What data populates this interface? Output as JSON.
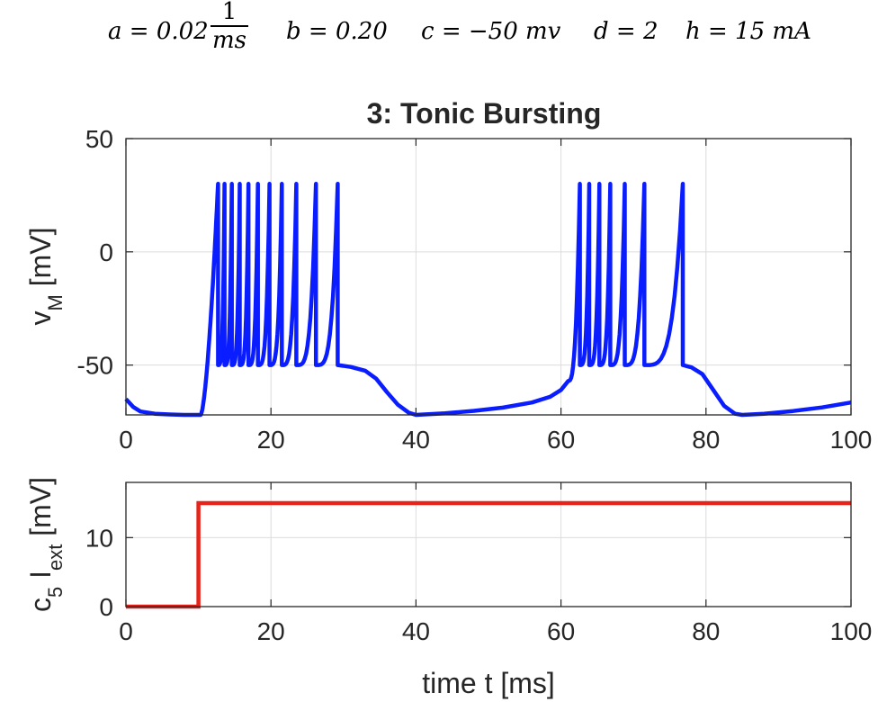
{
  "equation": {
    "a_lhs": "a = 0.02",
    "a_num": "1",
    "a_den": "ms",
    "b": "b = 0.20",
    "c": "c = −50 mv",
    "d": "d = 2",
    "h": "h = 15 mA"
  },
  "chart_data": [
    {
      "type": "line",
      "title": "3: Tonic Bursting",
      "xlabel": "",
      "ylabel": "v_M [mV]",
      "ylabel_main": "v",
      "ylabel_sub": "M",
      "ylabel_unit": " [mV]",
      "xlim": [
        0,
        100
      ],
      "ylim": [
        -72,
        50
      ],
      "xticks": [
        0,
        20,
        40,
        60,
        80,
        100
      ],
      "yticks": [
        -50,
        0,
        50
      ],
      "grid": true,
      "color": "#0a1dff",
      "series": [
        {
          "x": [
            0,
            1,
            2,
            4,
            6,
            8,
            10,
            10.3
          ],
          "y": [
            -65,
            -68.5,
            -70.5,
            -71.5,
            -71.8,
            -72,
            -72,
            -72
          ]
        }
      ],
      "bursts": [
        {
          "start": 10.3,
          "spikes": [
            12.7,
            13.6,
            14.6,
            15.7,
            16.9,
            18.2,
            19.8,
            21.5,
            23.5,
            26.2,
            29.2
          ]
        },
        {
          "start": 40,
          "spikes": [
            62.6,
            63.9,
            65.3,
            66.8,
            68.8,
            71.5,
            76.8
          ]
        }
      ],
      "spike_peak": 30,
      "reset_level": -50
    },
    {
      "type": "line",
      "title": "",
      "xlabel": "time t [ms]",
      "ylabel": "c_5 I_ext [mV]",
      "ylabel_c": "c",
      "ylabel_c_sub": "5",
      "ylabel_I": " I",
      "ylabel_I_sub": "ext",
      "ylabel_unit": " [mV]",
      "xlim": [
        0,
        100
      ],
      "ylim": [
        0,
        18
      ],
      "xticks": [
        0,
        20,
        40,
        60,
        80,
        100
      ],
      "yticks": [
        0,
        10
      ],
      "grid": true,
      "color": "#e8231a",
      "series": [
        {
          "x": [
            0,
            10,
            10,
            100
          ],
          "y": [
            0,
            0,
            15,
            15
          ]
        }
      ]
    }
  ]
}
